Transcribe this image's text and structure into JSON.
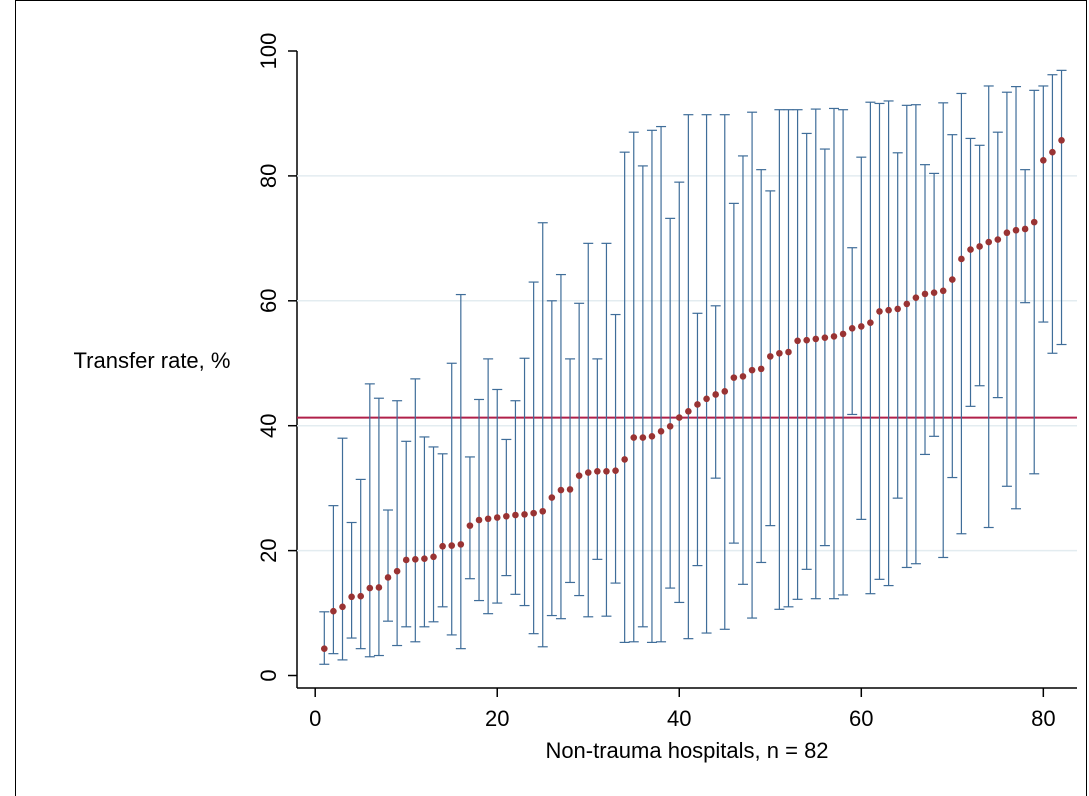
{
  "chart_data": {
    "type": "scatter",
    "x_label": "Non-trauma hospitals, n = 82",
    "y_label": "Transfer rate, %",
    "x": [
      1,
      2,
      3,
      4,
      5,
      6,
      7,
      8,
      9,
      10,
      11,
      12,
      13,
      14,
      15,
      16,
      17,
      18,
      19,
      20,
      21,
      22,
      23,
      24,
      25,
      26,
      27,
      28,
      29,
      30,
      31,
      32,
      33,
      34,
      35,
      36,
      37,
      38,
      39,
      40,
      41,
      42,
      43,
      44,
      45,
      46,
      47,
      48,
      49,
      50,
      51,
      52,
      53,
      54,
      55,
      56,
      57,
      58,
      59,
      60,
      61,
      62,
      63,
      64,
      65,
      66,
      67,
      68,
      69,
      70,
      71,
      72,
      73,
      74,
      75,
      76,
      77,
      78,
      79,
      80,
      81,
      82
    ],
    "values": [
      4.3,
      10.3,
      11.0,
      12.6,
      12.7,
      14.0,
      14.1,
      15.7,
      16.7,
      18.5,
      18.6,
      18.7,
      19.0,
      20.7,
      20.8,
      21.0,
      24.0,
      24.9,
      25.1,
      25.3,
      25.5,
      25.7,
      25.8,
      26.0,
      26.3,
      28.5,
      29.7,
      29.8,
      32.0,
      32.5,
      32.7,
      32.7,
      32.8,
      34.6,
      38.1,
      38.1,
      38.3,
      39.1,
      39.9,
      41.3,
      42.3,
      43.4,
      44.3,
      45.0,
      45.5,
      47.7,
      47.9,
      48.9,
      49.1,
      51.1,
      51.6,
      51.8,
      53.6,
      53.7,
      53.9,
      54.1,
      54.3,
      54.7,
      55.6,
      55.9,
      56.5,
      58.3,
      58.5,
      58.7,
      59.5,
      60.5,
      61.1,
      61.3,
      61.6,
      63.4,
      66.7,
      68.2,
      68.7,
      69.4,
      69.8,
      70.9,
      71.3,
      71.5,
      72.6,
      82.5,
      83.8,
      85.7
    ],
    "ci_lower": [
      1.8,
      3.5,
      2.5,
      6.0,
      4.3,
      3.0,
      3.2,
      8.7,
      4.8,
      7.8,
      5.4,
      7.8,
      8.6,
      11.0,
      6.5,
      4.3,
      15.5,
      12.0,
      9.9,
      11.6,
      16.0,
      13.0,
      11.2,
      6.7,
      4.6,
      9.6,
      9.1,
      14.9,
      12.8,
      9.4,
      18.6,
      9.5,
      14.8,
      5.3,
      5.4,
      7.8,
      5.3,
      5.4,
      14.0,
      11.7,
      5.9,
      17.6,
      6.8,
      31.6,
      7.4,
      21.2,
      14.6,
      9.2,
      18.1,
      24.0,
      10.6,
      11.0,
      12.2,
      17.0,
      12.3,
      20.8,
      12.3,
      12.9,
      41.8,
      25.0,
      13.1,
      15.4,
      14.4,
      28.4,
      17.3,
      17.9,
      35.4,
      38.3,
      18.9,
      31.7,
      22.7,
      43.1,
      46.4,
      23.7,
      44.5,
      30.3,
      26.7,
      59.7,
      32.3,
      56.6,
      51.6,
      53.0
    ],
    "ci_upper": [
      10.2,
      27.2,
      38.0,
      24.5,
      31.4,
      46.7,
      44.4,
      26.5,
      44.0,
      37.5,
      47.5,
      38.2,
      36.6,
      35.5,
      50.0,
      61.0,
      35.0,
      44.2,
      50.7,
      45.8,
      37.8,
      44.0,
      50.8,
      63.0,
      72.5,
      60.0,
      64.2,
      50.7,
      59.6,
      69.2,
      50.7,
      69.2,
      57.8,
      83.8,
      87.0,
      81.6,
      87.3,
      87.9,
      73.2,
      79.0,
      89.8,
      58.0,
      89.8,
      59.2,
      89.8,
      75.6,
      83.2,
      90.2,
      81.0,
      77.6,
      90.6,
      90.6,
      90.6,
      86.8,
      90.7,
      84.3,
      90.8,
      90.6,
      68.5,
      83.0,
      91.8,
      91.6,
      92.0,
      83.7,
      91.3,
      91.4,
      81.8,
      80.4,
      91.7,
      86.6,
      93.2,
      86.0,
      84.9,
      94.4,
      87.0,
      93.4,
      94.3,
      81.0,
      93.7,
      94.4,
      96.2,
      96.9
    ],
    "reference_line": 41.3,
    "point_color": "#993333",
    "errorbar_color": "#3f6d99",
    "reference_color": "#b0204a",
    "xlim": [
      -2,
      83.7
    ],
    "ylim": [
      -2,
      100
    ],
    "xticks": [
      0,
      20,
      40,
      60,
      80
    ],
    "yticks": [
      0,
      20,
      40,
      60,
      80,
      100
    ],
    "grid": true
  }
}
